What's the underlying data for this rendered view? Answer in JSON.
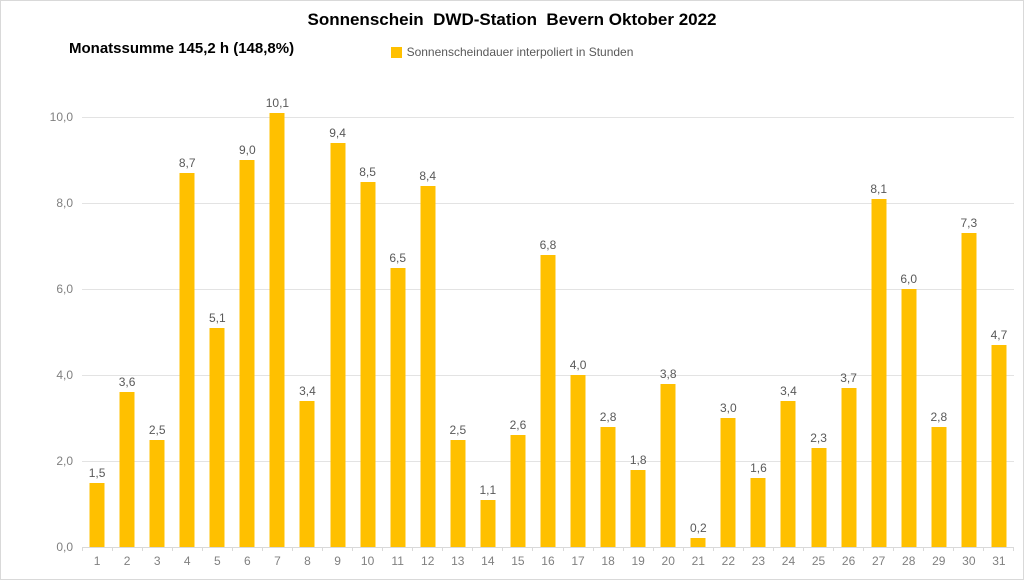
{
  "title": "Sonnenschein  DWD-Station  Bevern Oktober 2022",
  "subtitle": "Monatssumme 145,2 h (148,8%)",
  "legend": {
    "label": "Sonnenscheindauer interpoliert in Stunden",
    "color": "#FFC000"
  },
  "colors": {
    "bar": "#FFC000",
    "gridline": "#e3e3e3",
    "axis_labels": "#808080",
    "data_labels": "#595959",
    "title_text": "#000000",
    "frame_border": "#d9d9d9"
  },
  "chart_data": {
    "type": "bar",
    "title": "Sonnenschein DWD-Station Bevern Oktober 2022",
    "series_name": "Sonnenscheindauer interpoliert in Stunden",
    "categories": [
      "1",
      "2",
      "3",
      "4",
      "5",
      "6",
      "7",
      "8",
      "9",
      "10",
      "11",
      "12",
      "13",
      "14",
      "15",
      "16",
      "17",
      "18",
      "19",
      "20",
      "21",
      "22",
      "23",
      "24",
      "25",
      "26",
      "27",
      "28",
      "29",
      "30",
      "31"
    ],
    "values": [
      1.5,
      3.6,
      2.5,
      8.7,
      5.1,
      9.0,
      10.1,
      3.4,
      9.4,
      8.5,
      6.5,
      8.4,
      2.5,
      1.1,
      2.6,
      6.8,
      4.0,
      2.8,
      1.8,
      3.8,
      0.2,
      3.0,
      1.6,
      3.4,
      2.3,
      3.7,
      8.1,
      6.0,
      2.8,
      7.3,
      4.7
    ],
    "data_labels": [
      "1,5",
      "3,6",
      "2,5",
      "8,7",
      "5,1",
      "9,0",
      "10,1",
      "3,4",
      "9,4",
      "8,5",
      "6,5",
      "8,4",
      "2,5",
      "1,1",
      "2,6",
      "6,8",
      "4,0",
      "2,8",
      "1,8",
      "3,8",
      "0,2",
      "3,0",
      "1,6",
      "3,4",
      "2,3",
      "3,7",
      "8,1",
      "6,0",
      "2,8",
      "7,3",
      "4,7"
    ],
    "monthly_sum_hours": "145,2",
    "monthly_sum_percent": "148,8%",
    "xlabel": "",
    "ylabel": "",
    "ylim": [
      0,
      10
    ],
    "ytick_values": [
      0,
      2,
      4,
      6,
      8,
      10
    ],
    "ytick_labels": [
      "0,0",
      "2,0",
      "4,0",
      "6,0",
      "8,0",
      "10,0"
    ],
    "grid": true,
    "legend_position": "top"
  }
}
